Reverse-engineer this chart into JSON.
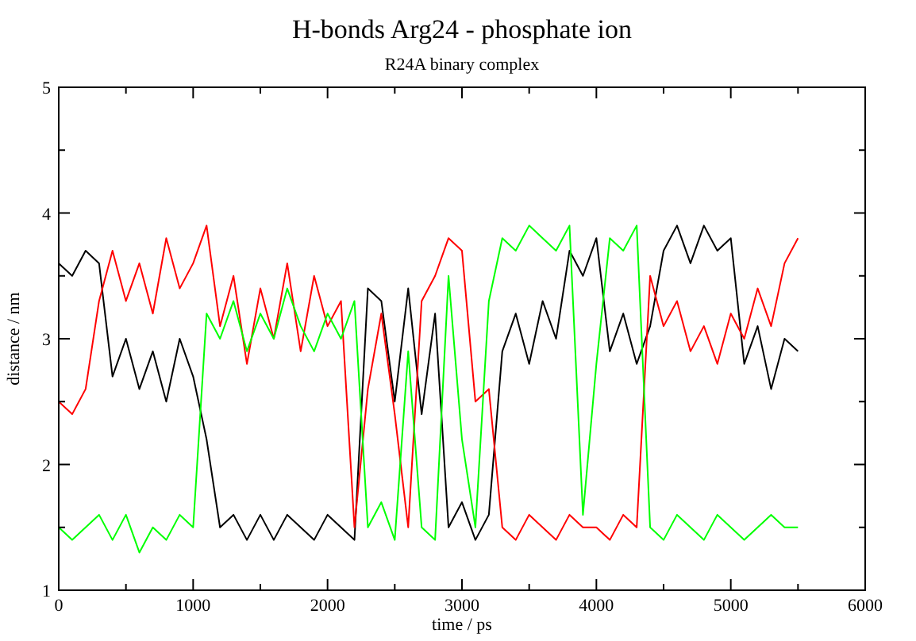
{
  "chart_data": {
    "type": "line",
    "title": "H-bonds Arg24 - phosphate ion",
    "subtitle": "R24A binary complex",
    "xlabel": "time / ps",
    "ylabel": "distance / nm",
    "x": [
      0,
      100,
      200,
      300,
      400,
      500,
      600,
      700,
      800,
      900,
      1000,
      1100,
      1200,
      1300,
      1400,
      1500,
      1600,
      1700,
      1800,
      1900,
      2000,
      2100,
      2200,
      2300,
      2400,
      2500,
      2600,
      2700,
      2800,
      2900,
      3000,
      3100,
      3200,
      3300,
      3400,
      3500,
      3600,
      3700,
      3800,
      3900,
      4000,
      4100,
      4200,
      4300,
      4400,
      4500,
      4600,
      4700,
      4800,
      4900,
      5000,
      5100,
      5200,
      5300,
      5400,
      5500
    ],
    "series": [
      {
        "color": "#000000",
        "values": [
          3.6,
          3.5,
          3.7,
          3.6,
          2.7,
          3.0,
          2.6,
          2.9,
          2.5,
          3.0,
          2.7,
          2.2,
          1.5,
          1.6,
          1.4,
          1.6,
          1.4,
          1.6,
          1.5,
          1.4,
          1.6,
          1.5,
          1.4,
          3.4,
          3.3,
          2.5,
          3.4,
          2.4,
          3.2,
          1.5,
          1.7,
          1.4,
          1.6,
          2.9,
          3.2,
          2.8,
          3.3,
          3.0,
          3.7,
          3.5,
          3.8,
          2.9,
          3.2,
          2.8,
          3.1,
          3.7,
          3.9,
          3.6,
          3.9,
          3.7,
          3.8,
          2.8,
          3.1,
          2.6,
          3.0,
          2.9
        ]
      },
      {
        "color": "#ff0000",
        "values": [
          2.5,
          2.4,
          2.6,
          3.3,
          3.7,
          3.3,
          3.6,
          3.2,
          3.8,
          3.4,
          3.6,
          3.9,
          3.1,
          3.5,
          2.8,
          3.4,
          3.0,
          3.6,
          2.9,
          3.5,
          3.1,
          3.3,
          1.5,
          2.6,
          3.2,
          2.4,
          1.5,
          3.3,
          3.5,
          3.8,
          3.7,
          2.5,
          2.6,
          1.5,
          1.4,
          1.6,
          1.5,
          1.4,
          1.6,
          1.5,
          1.5,
          1.4,
          1.6,
          1.5,
          3.5,
          3.1,
          3.3,
          2.9,
          3.1,
          2.8,
          3.2,
          3.0,
          3.4,
          3.1,
          3.6,
          3.8
        ]
      },
      {
        "color": "#00ff00",
        "values": [
          1.5,
          1.4,
          1.5,
          1.6,
          1.4,
          1.6,
          1.3,
          1.5,
          1.4,
          1.6,
          1.5,
          3.2,
          3.0,
          3.3,
          2.9,
          3.2,
          3.0,
          3.4,
          3.1,
          2.9,
          3.2,
          3.0,
          3.3,
          1.5,
          1.7,
          1.4,
          2.9,
          1.5,
          1.4,
          3.5,
          2.2,
          1.5,
          3.3,
          3.8,
          3.7,
          3.9,
          3.8,
          3.7,
          3.9,
          1.6,
          2.8,
          3.8,
          3.7,
          3.9,
          1.5,
          1.4,
          1.6,
          1.5,
          1.4,
          1.6,
          1.5,
          1.4,
          1.5,
          1.6,
          1.5,
          1.5
        ]
      }
    ],
    "xlim": [
      0,
      6000
    ],
    "xticks": [
      0,
      {
        "value": 500,
        "label": null
      },
      1000,
      {
        "value": 1500,
        "label": null
      },
      2000,
      {
        "value": 2500,
        "label": null
      },
      3000,
      {
        "value": 3500,
        "label": null
      },
      4000,
      {
        "value": 4500,
        "label": null
      },
      5000,
      {
        "value": 5500,
        "label": null
      },
      6000
    ],
    "ylim": [
      1,
      5
    ],
    "yticks": [
      1,
      {
        "value": 1.5,
        "label": null
      },
      2,
      {
        "value": 2.5,
        "label": null
      },
      3,
      {
        "value": 3.5,
        "label": null
      },
      4,
      {
        "value": 4.5,
        "label": null
      },
      5
    ],
    "grid": false,
    "line_style": "solid"
  }
}
